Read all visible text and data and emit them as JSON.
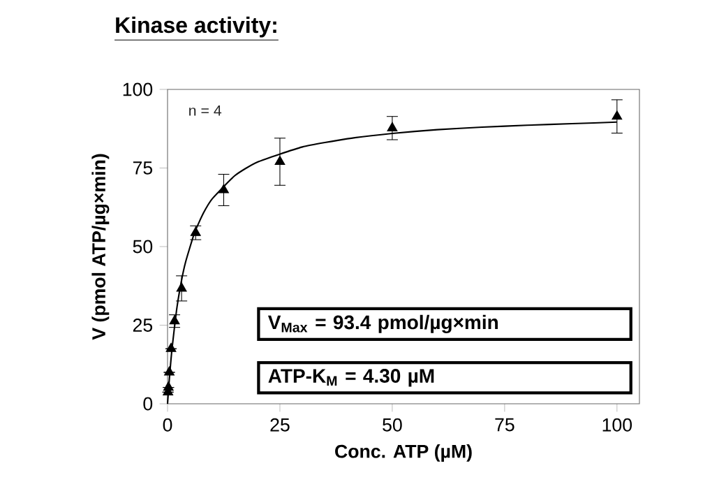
{
  "chart_data": {
    "type": "scatter",
    "title": "Kinase activity:",
    "xlabel": "Conc. ATP (µM)",
    "ylabel": "V (pmol ATP/µg×min)",
    "annotations": [
      "n = 4",
      "V$_{Max}$ = 93.4 pmol/µg×min",
      "ATP-K$_{M}$ =  4.30 µM"
    ],
    "xlim": [
      0,
      105
    ],
    "ylim": [
      0,
      100
    ],
    "xticks": [
      0,
      25,
      50,
      75,
      100
    ],
    "yticks": [
      0,
      25,
      50,
      75,
      100
    ],
    "grid": false,
    "marker": "triangle",
    "series": [
      {
        "color": "#000000",
        "x": [
          0.1,
          0.2,
          0.39,
          0.78,
          1.56,
          3.125,
          6.25,
          12.5,
          25,
          50,
          100
        ],
        "values": [
          3.7,
          5.2,
          10,
          17.5,
          26.3,
          36.7,
          54.4,
          68,
          77,
          87.7,
          91.4
        ],
        "errors": [
          null,
          null,
          null,
          null,
          2,
          4,
          2.2,
          5,
          7.5,
          3.7,
          5.3
        ]
      },
      {
        "type": "line",
        "color": "#000000",
        "marker": "none",
        "line_style": "solid",
        "x": [
          0,
          0.25,
          0.5,
          1,
          2,
          3,
          4,
          6,
          8,
          10,
          15,
          20,
          30,
          40,
          50,
          60,
          70,
          80,
          90,
          100
        ],
        "values": [
          0,
          5.1,
          9.7,
          17.6,
          29.7,
          38.4,
          45.0,
          54.4,
          60.7,
          65.3,
          72.6,
          76.9,
          81.7,
          84.3,
          86.0,
          87.2,
          88.0,
          88.6,
          89.1,
          89.6
        ]
      }
    ]
  }
}
